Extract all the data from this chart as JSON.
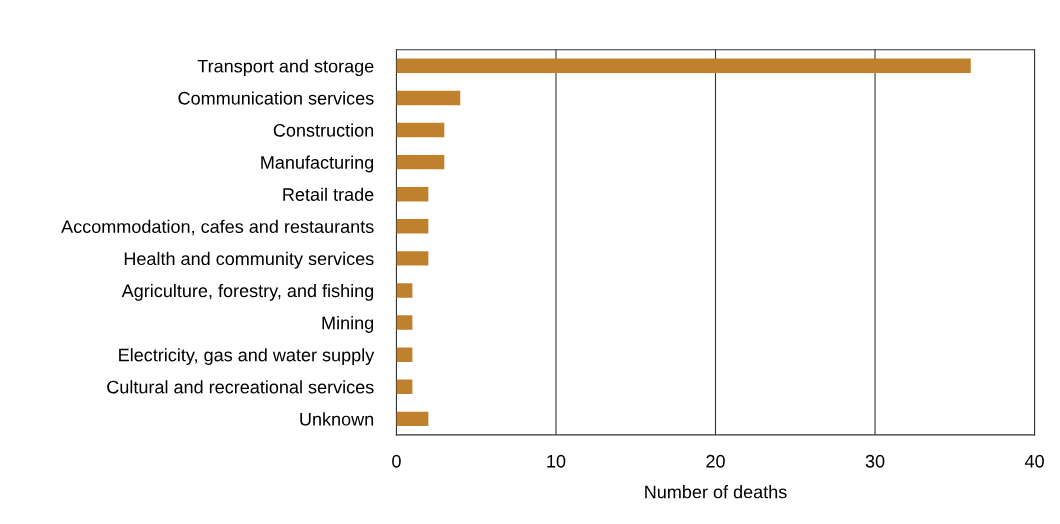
{
  "chart_data": {
    "type": "bar",
    "orientation": "horizontal",
    "xlabel": "Number of deaths",
    "categories": [
      "Transport and storage",
      "Communication services",
      "Construction",
      "Manufacturing",
      "Retail trade",
      "Accommodation, cafes and restaurants",
      "Health and community services",
      "Agriculture, forestry, and fishing",
      "Mining",
      "Electricity, gas and water supply",
      "Cultural and recreational services",
      "Unknown"
    ],
    "values": [
      36,
      4,
      3,
      3,
      2,
      2,
      2,
      1,
      1,
      1,
      1,
      2
    ],
    "color": "#bf812d",
    "xlim": [
      0,
      40
    ],
    "xticks": [
      0,
      10,
      20,
      30,
      40
    ],
    "grid": "x",
    "legend": false
  }
}
